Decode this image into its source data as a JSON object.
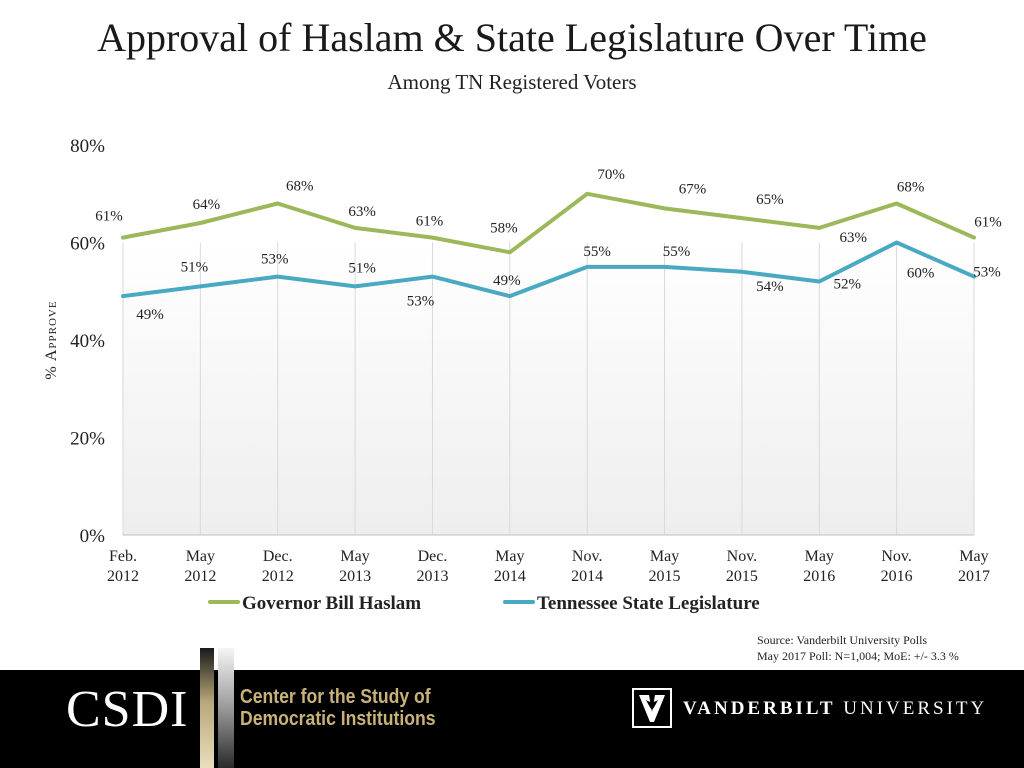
{
  "header": {
    "title": "Approval of Haslam & State Legislature Over Time",
    "subtitle": "Among TN Registered Voters"
  },
  "chart_data": {
    "type": "line",
    "title": "Approval of Haslam & State Legislature Over Time",
    "subtitle": "Among TN Registered Voters",
    "ylabel": "% Approve",
    "xlabel": "",
    "ylim": [
      0,
      80
    ],
    "yticks": [
      0,
      20,
      40,
      60,
      80
    ],
    "ytick_labels": [
      "0%",
      "20%",
      "40%",
      "60%",
      "80%"
    ],
    "categories": [
      [
        "Feb.",
        "2012"
      ],
      [
        "May",
        "2012"
      ],
      [
        "Dec.",
        "2012"
      ],
      [
        "May",
        "2013"
      ],
      [
        "Dec.",
        "2013"
      ],
      [
        "May",
        "2014"
      ],
      [
        "Nov.",
        "2014"
      ],
      [
        "May",
        "2015"
      ],
      [
        "Nov.",
        "2015"
      ],
      [
        "May",
        "2016"
      ],
      [
        "Nov.",
        "2016"
      ],
      [
        "May",
        "2017"
      ]
    ],
    "series": [
      {
        "name": "Governor Bill Haslam",
        "color": "#9bb85a",
        "values": [
          61,
          64,
          68,
          63,
          61,
          58,
          70,
          67,
          65,
          63,
          68,
          61
        ],
        "labels": [
          "61%",
          "64%",
          "68%",
          "63%",
          "61%",
          "58%",
          "70%",
          "67%",
          "65%",
          "63%",
          "68%",
          "61%"
        ]
      },
      {
        "name": "Tennessee State Legislature",
        "color": "#4aa9c2",
        "values": [
          49,
          51,
          53,
          51,
          53,
          49,
          55,
          55,
          54,
          52,
          60,
          53
        ],
        "labels": [
          "49%",
          "51%",
          "53%",
          "51%",
          "53%",
          "49%",
          "55%",
          "55%",
          "54%",
          "52%",
          "60%",
          "53%"
        ]
      }
    ],
    "legend_position": "bottom",
    "grid": "vertical"
  },
  "source": {
    "line1": "Source: Vanderbilt University Polls",
    "line2": "May 2017 Poll: N=1,004; MoE: +/- 3.3 %"
  },
  "footer": {
    "csdi": "CSDI",
    "center_line1": "Center for the Study of",
    "center_line2": "Democratic Institutions",
    "vu_bold": "VANDERBILT",
    "vu_rest": "UNIVERSITY",
    "colors": {
      "background": "#000000",
      "gold": "#c8b27a"
    }
  }
}
